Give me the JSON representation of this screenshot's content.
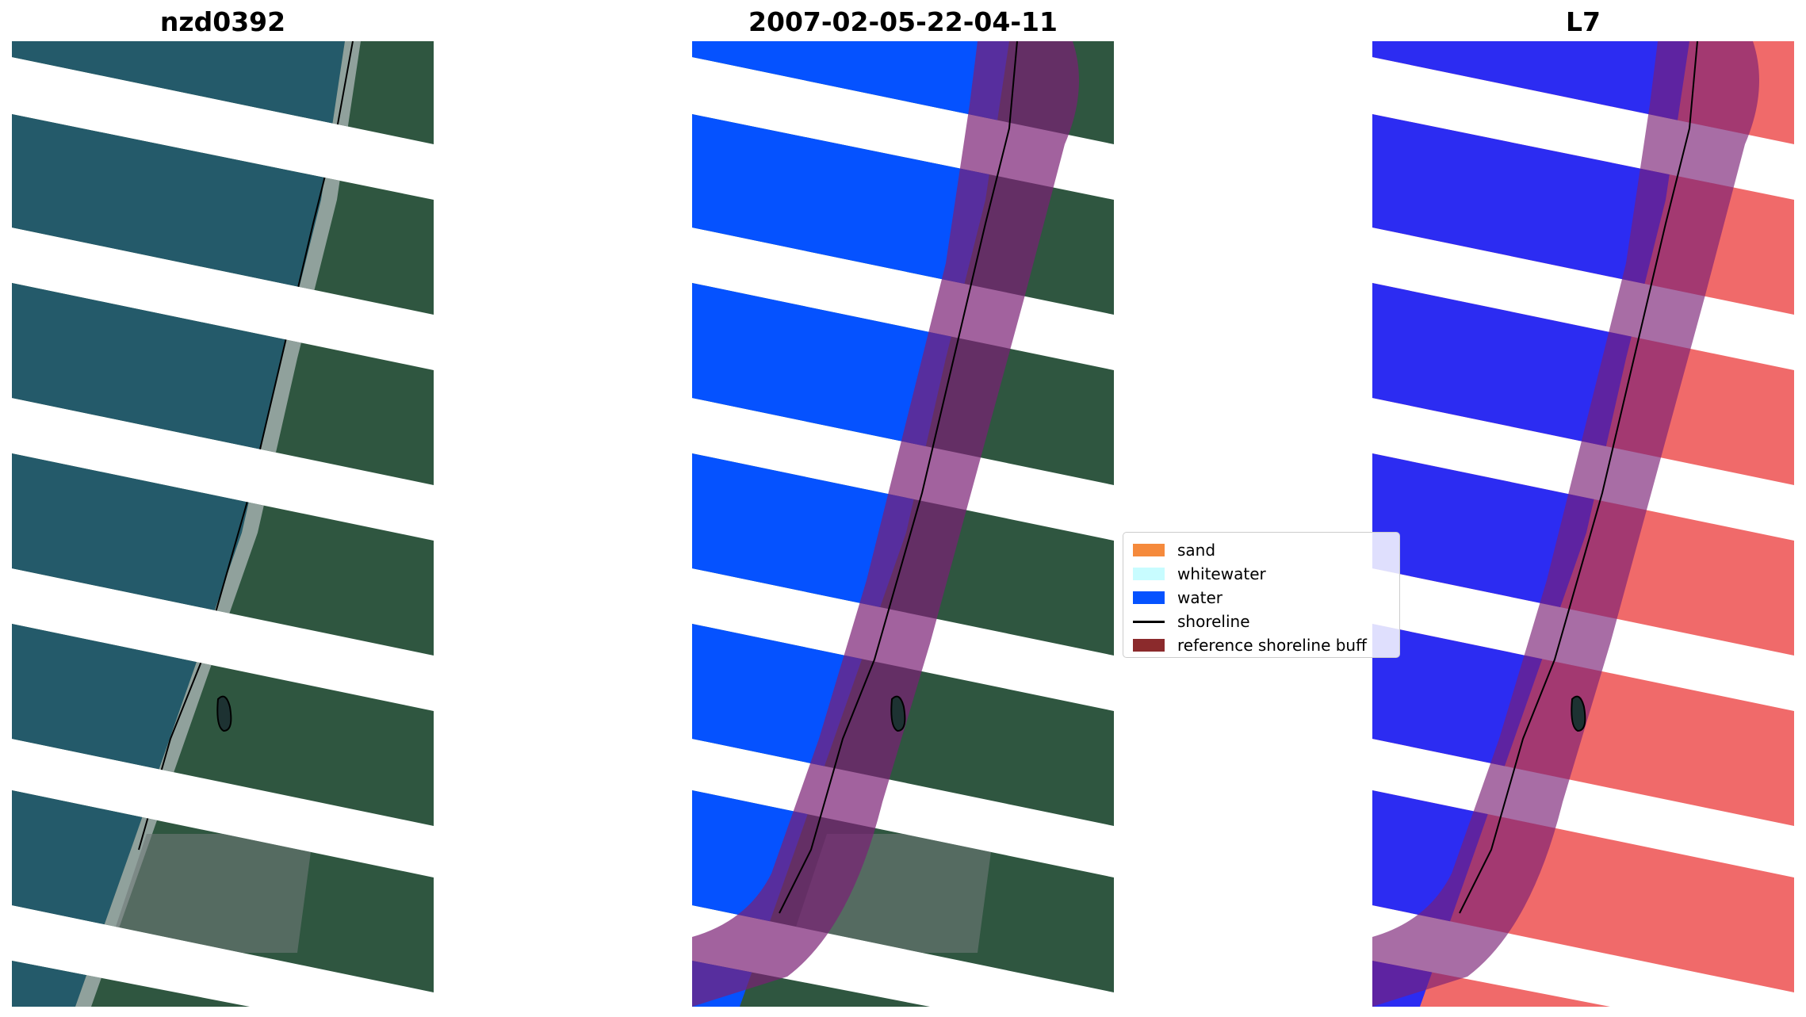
{
  "titles": {
    "rgb": "nzd0392",
    "classification": "2007-02-05-22-04-11",
    "index": "L7"
  },
  "legend": {
    "items": [
      {
        "label": "sand",
        "color": "#f58a3c",
        "kind": "patch"
      },
      {
        "label": "whitewater",
        "color": "#c8fcff",
        "kind": "patch"
      },
      {
        "label": "water",
        "color": "#0552ff",
        "kind": "patch"
      },
      {
        "label": "shoreline",
        "color": "#000000",
        "kind": "line"
      },
      {
        "label": "reference shoreline buff",
        "color": "#8b2a2c",
        "kind": "patch"
      }
    ]
  },
  "colors": {
    "ocean_rgb": "#245a6a",
    "land_rgb": "#2f5640",
    "water_class": "#0552ff",
    "buffer_overlay": "#b34a8a",
    "mndwi_water": "#2c2cf2",
    "mndwi_land": "#f06a6a"
  }
}
